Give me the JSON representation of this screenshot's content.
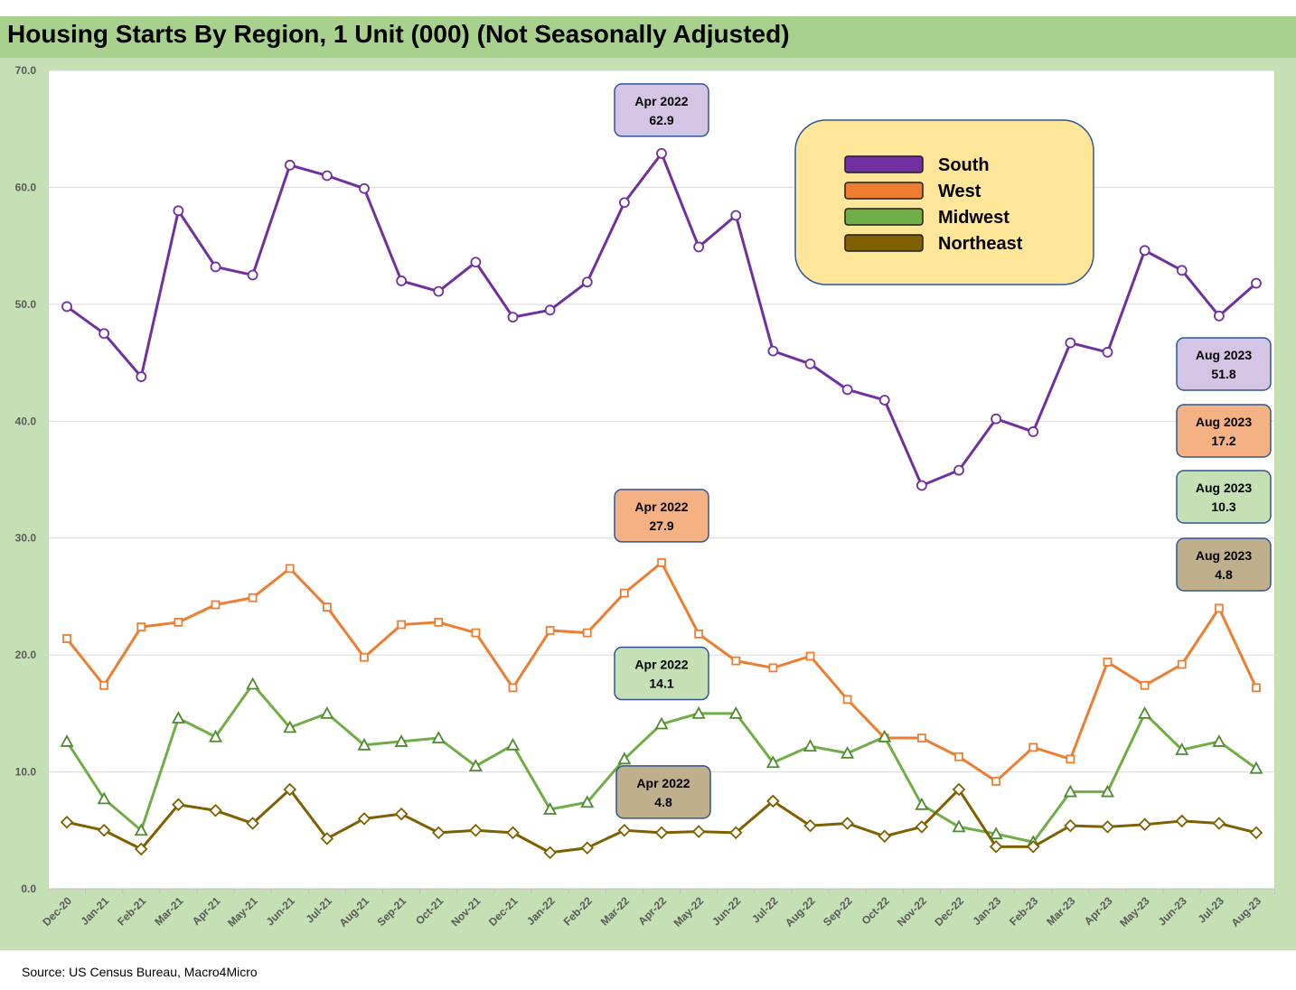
{
  "title": "Housing Starts By Region, 1 Unit (000) (Not Seasonally Adjusted)",
  "source": "Source: US Census Bureau, Macro4Micro",
  "chart_data": {
    "type": "line",
    "title": "Housing Starts By Region, 1 Unit (000) (Not Seasonally Adjusted)",
    "xlabel": "",
    "ylabel": "",
    "ylim": [
      0,
      70
    ],
    "yticks": [
      "0.0",
      "10.0",
      "20.0",
      "30.0",
      "40.0",
      "50.0",
      "60.0",
      "70.0"
    ],
    "categories": [
      "Dec-20",
      "Jan-21",
      "Feb-21",
      "Mar-21",
      "Apr-21",
      "May-21",
      "Jun-21",
      "Jul-21",
      "Aug-21",
      "Sep-21",
      "Oct-21",
      "Nov-21",
      "Dec-21",
      "Jan-22",
      "Feb-22",
      "Mar-22",
      "Apr-22",
      "May-22",
      "Jun-22",
      "Jul-22",
      "Aug-22",
      "Sep-22",
      "Oct-22",
      "Nov-22",
      "Dec-22",
      "Jan-23",
      "Feb-23",
      "Mar-23",
      "Apr-23",
      "May-23",
      "Jun-23",
      "Jul-23",
      "Aug-23"
    ],
    "legend_position": "top-right",
    "series": [
      {
        "name": "South",
        "color": "#7030a0",
        "marker": "circle",
        "values": [
          49.8,
          47.5,
          43.8,
          58.0,
          53.2,
          52.5,
          61.9,
          61.0,
          59.9,
          52.0,
          51.1,
          53.6,
          48.9,
          49.5,
          51.9,
          58.7,
          62.9,
          54.9,
          57.6,
          46.0,
          44.9,
          42.7,
          41.8,
          34.5,
          35.8,
          40.2,
          39.1,
          46.7,
          45.9,
          54.6,
          52.9,
          49.0,
          51.8
        ]
      },
      {
        "name": "West",
        "color": "#ed7d31",
        "marker": "square",
        "values": [
          21.4,
          17.4,
          22.4,
          22.8,
          24.3,
          24.9,
          27.4,
          24.1,
          19.8,
          22.6,
          22.8,
          21.9,
          17.2,
          22.1,
          21.9,
          25.3,
          27.9,
          21.8,
          19.5,
          18.9,
          19.9,
          16.2,
          12.9,
          12.9,
          11.3,
          9.2,
          12.1,
          11.1,
          19.4,
          17.4,
          19.2,
          24.0,
          17.2
        ]
      },
      {
        "name": "Midwest",
        "color": "#70ad47",
        "marker": "triangle",
        "values": [
          12.6,
          7.7,
          5.0,
          14.6,
          13.0,
          17.5,
          13.8,
          15.0,
          12.3,
          12.6,
          12.9,
          10.5,
          12.3,
          6.8,
          7.4,
          11.1,
          14.1,
          15.0,
          15.0,
          10.8,
          12.2,
          11.6,
          13.0,
          7.2,
          5.3,
          4.7,
          4.0,
          8.3,
          8.3,
          15.0,
          11.9,
          12.6,
          10.3
        ]
      },
      {
        "name": "Northeast",
        "color": "#7f6000",
        "marker": "diamond",
        "values": [
          5.7,
          5.0,
          3.4,
          7.2,
          6.7,
          5.6,
          8.5,
          4.3,
          6.0,
          6.4,
          4.8,
          5.0,
          4.8,
          3.1,
          3.5,
          5.0,
          4.8,
          4.9,
          4.8,
          7.5,
          5.4,
          5.6,
          4.5,
          5.3,
          8.5,
          3.6,
          3.6,
          5.4,
          5.3,
          5.5,
          5.8,
          5.6,
          4.8
        ]
      }
    ],
    "callouts": [
      {
        "series": "South",
        "line1": "Apr 2022",
        "line2": "62.9",
        "fill": "#d3c5e3",
        "stroke": "#2f5597"
      },
      {
        "series": "West",
        "line1": "Apr 2022",
        "line2": "27.9",
        "fill": "#f4b183",
        "stroke": "#2f5597"
      },
      {
        "series": "Midwest",
        "line1": "Apr 2022",
        "line2": "14.1",
        "fill": "#c5e0b4",
        "stroke": "#2f5597"
      },
      {
        "series": "Northeast",
        "line1": "Apr 2022",
        "line2": "4.8",
        "fill": "#bfaf8c",
        "stroke": "#2f5597"
      },
      {
        "series": "South",
        "line1": "Aug 2023",
        "line2": "51.8",
        "fill": "#d3c5e3",
        "stroke": "#2f5597"
      },
      {
        "series": "West",
        "line1": "Aug 2023",
        "line2": "17.2",
        "fill": "#f4b183",
        "stroke": "#2f5597"
      },
      {
        "series": "Midwest",
        "line1": "Aug 2023",
        "line2": "10.3",
        "fill": "#c5e0b4",
        "stroke": "#2f5597"
      },
      {
        "series": "Northeast",
        "line1": "Aug 2023",
        "line2": "4.8",
        "fill": "#bfaf8c",
        "stroke": "#2f5597"
      }
    ]
  },
  "colors": {
    "background": "#ffffff",
    "frame": "#c5e0b4",
    "title_bar": "#a9d18e",
    "gridline": "#d9d9d9",
    "legend_fill": "#ffe699",
    "legend_stroke": "#2f5597"
  }
}
